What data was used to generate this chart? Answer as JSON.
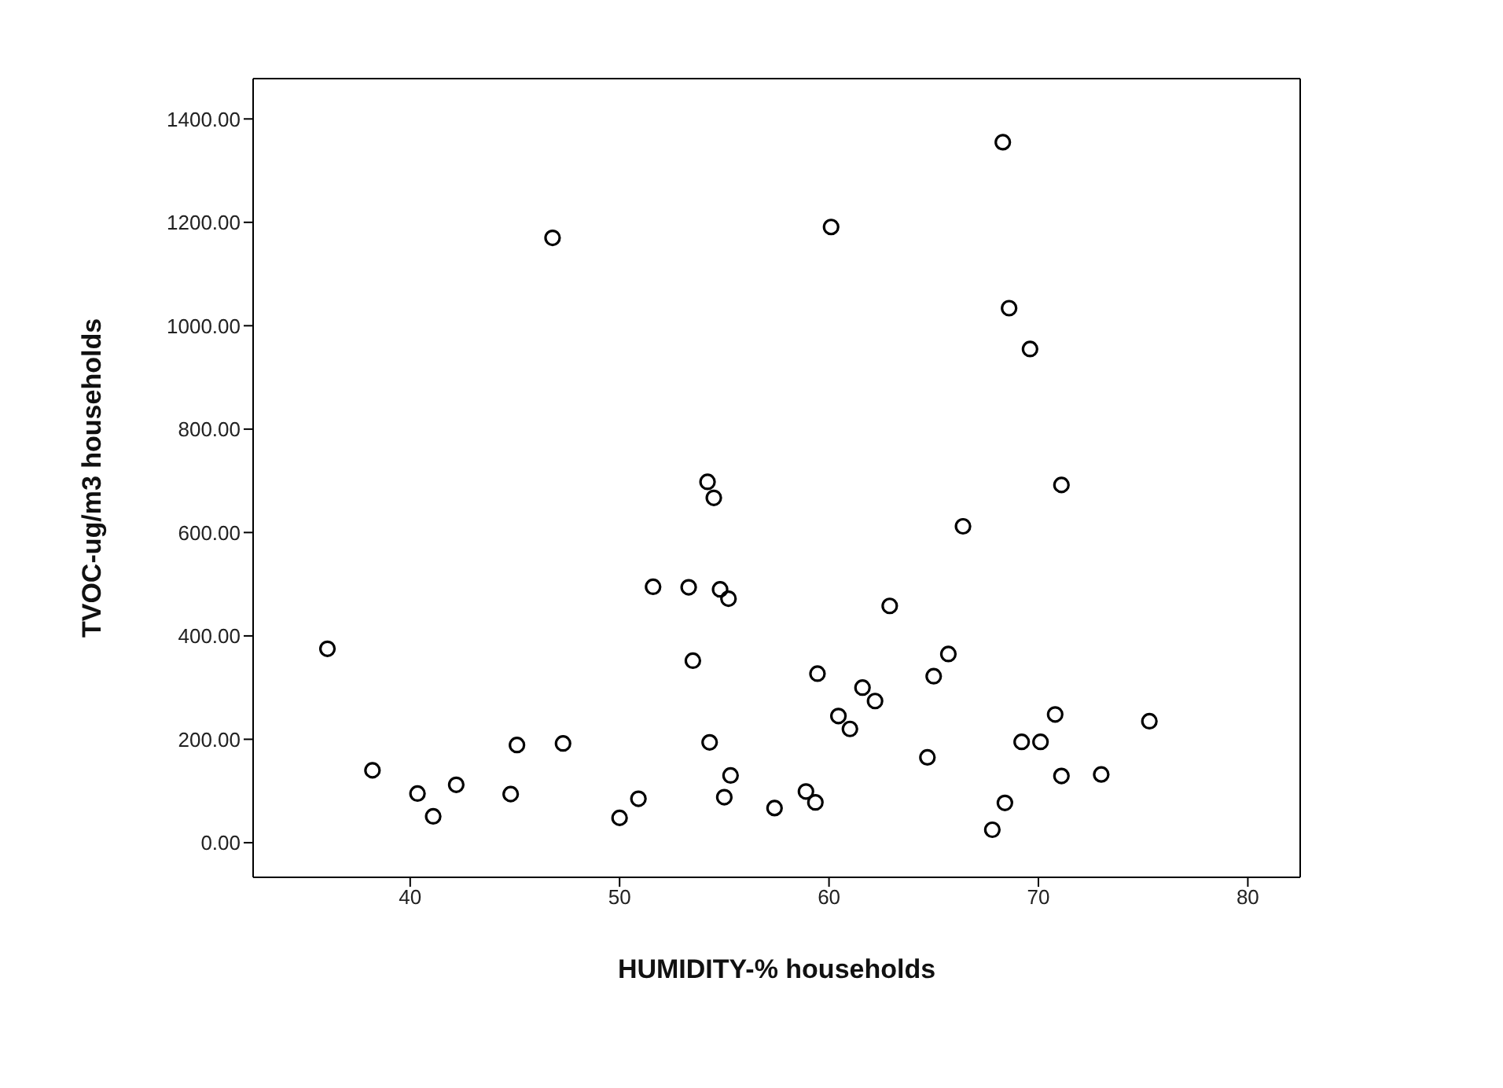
{
  "chart_data": {
    "type": "scatter",
    "xlabel": "HUMIDITY-% households",
    "ylabel": "TVOC-ug/m3 households",
    "marker": "circle",
    "grid": false,
    "legend": false,
    "xlim": [
      32.5,
      82.5
    ],
    "xticks": [
      40,
      50,
      60,
      70,
      80
    ],
    "ylim": [
      -67,
      1478
    ],
    "yticks": [
      {
        "value": 0,
        "label": "0.00"
      },
      {
        "value": 200,
        "label": "200.00"
      },
      {
        "value": 400,
        "label": "400.00"
      },
      {
        "value": 600,
        "label": "600.00"
      },
      {
        "value": 800,
        "label": "800.00"
      },
      {
        "value": 1000,
        "label": "1000.00"
      },
      {
        "value": 1200,
        "label": "1200.00"
      },
      {
        "value": 1400,
        "label": "1400.00"
      }
    ],
    "series": [
      {
        "color": "#000000",
        "x": [
          46.8,
          54.2,
          54.5,
          68.3,
          60.1,
          68.6,
          69.6,
          71.1,
          36.05,
          38.2,
          40.35,
          41.1,
          42.2,
          44.8,
          45.1,
          47.3,
          50.0,
          50.9,
          51.6,
          53.3,
          53.5,
          54.8,
          55.2,
          54.3,
          55.3,
          55.0,
          66.4,
          62.9,
          65.7,
          65.0,
          59.45,
          61.6,
          62.2,
          60.45,
          61.0,
          64.7,
          57.4,
          58.9,
          59.35,
          70.8,
          69.2,
          70.1,
          75.3,
          71.1,
          73.0,
          68.4,
          67.8
        ],
        "values": [
          1170,
          698,
          667,
          1355,
          1191,
          1034,
          955,
          692,
          375,
          140,
          95,
          51,
          112,
          94,
          189,
          192,
          48,
          85,
          495,
          494,
          352,
          490,
          472,
          194,
          130,
          88,
          612,
          458,
          365,
          322,
          327,
          300,
          274,
          245,
          220,
          165,
          67,
          99,
          78,
          248,
          195,
          195,
          235,
          129,
          132,
          77,
          25
        ]
      }
    ]
  }
}
